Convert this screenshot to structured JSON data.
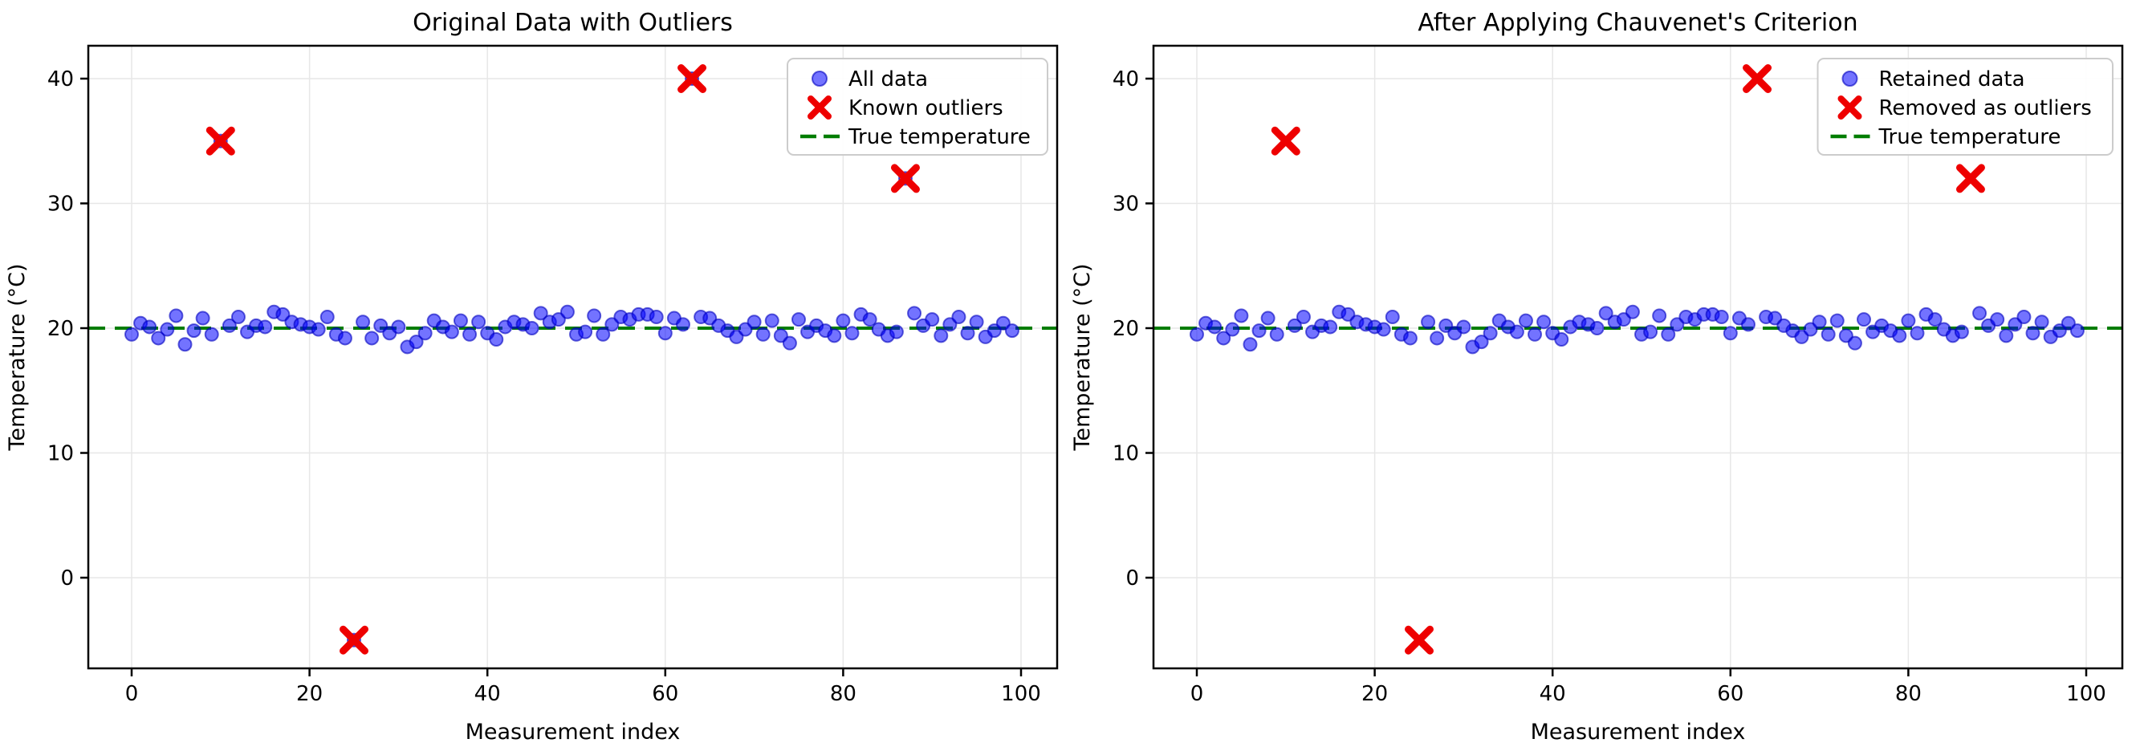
{
  "figure": {
    "background": "#ffffff",
    "colors": {
      "data_point_fill": "#6666ff",
      "data_point_edge": "#3b3bd6",
      "outlier_red": "#ee0000",
      "true_line_green": "#007d00",
      "grid": "#e7e7e7",
      "spine": "#000000",
      "legend_border": "#cccccc"
    }
  },
  "chart_data": [
    {
      "type": "scatter",
      "title": "Original Data with Outliers",
      "xlabel": "Measurement index",
      "ylabel": "Temperature (°C)",
      "xlim": [
        -4.9,
        104.1
      ],
      "ylim": [
        -7.3,
        42.8
      ],
      "xticks": [
        0,
        20,
        40,
        60,
        80,
        100
      ],
      "yticks": [
        0,
        10,
        20,
        30,
        40
      ],
      "grid": true,
      "legend_position": "upper right",
      "legend_labels": [
        "All data",
        "Known outliers",
        "True temperature"
      ],
      "series": [
        {
          "name": "All data",
          "kind": "scatter",
          "marker": "circle",
          "color": "#6666ff",
          "x": [
            0,
            1,
            2,
            3,
            4,
            5,
            6,
            7,
            8,
            9,
            10,
            11,
            12,
            13,
            14,
            15,
            16,
            17,
            18,
            19,
            20,
            21,
            22,
            23,
            24,
            25,
            26,
            27,
            28,
            29,
            30,
            31,
            32,
            33,
            34,
            35,
            36,
            37,
            38,
            39,
            40,
            41,
            42,
            43,
            44,
            45,
            46,
            47,
            48,
            49,
            50,
            51,
            52,
            53,
            54,
            55,
            56,
            57,
            58,
            59,
            60,
            61,
            62,
            63,
            64,
            65,
            66,
            67,
            68,
            69,
            70,
            71,
            72,
            73,
            74,
            75,
            76,
            77,
            78,
            79,
            80,
            81,
            82,
            83,
            84,
            85,
            86,
            87,
            88,
            89,
            90,
            91,
            92,
            93,
            94,
            95,
            96,
            97,
            98,
            99
          ],
          "y": [
            19.5,
            20.4,
            20.1,
            19.2,
            19.9,
            21.0,
            18.7,
            19.8,
            20.8,
            19.5,
            35.0,
            20.2,
            20.9,
            19.7,
            20.2,
            20.1,
            21.3,
            21.1,
            20.5,
            20.3,
            20.1,
            19.9,
            20.9,
            19.5,
            19.2,
            -5.0,
            20.5,
            19.2,
            20.2,
            19.6,
            20.1,
            18.5,
            18.9,
            19.6,
            20.6,
            20.1,
            19.7,
            20.6,
            19.5,
            20.5,
            19.6,
            19.1,
            20.1,
            20.5,
            20.3,
            20.0,
            21.2,
            20.5,
            20.7,
            21.3,
            19.5,
            19.7,
            21.0,
            19.5,
            20.3,
            20.9,
            20.7,
            21.1,
            21.1,
            20.9,
            19.6,
            20.8,
            20.3,
            40.0,
            20.9,
            20.8,
            20.2,
            19.8,
            19.3,
            19.9,
            20.5,
            19.5,
            20.6,
            19.4,
            18.8,
            20.7,
            19.7,
            20.2,
            19.8,
            19.4,
            20.6,
            19.6,
            21.1,
            20.7,
            19.9,
            19.4,
            19.7,
            32.0,
            21.2,
            20.2,
            20.7,
            19.4,
            20.3,
            20.9,
            19.6,
            20.5,
            19.3,
            19.8,
            20.4,
            19.8
          ]
        },
        {
          "name": "Known outliers",
          "kind": "scatter",
          "marker": "X",
          "color": "#ee0000",
          "x": [
            10,
            25,
            63,
            87
          ],
          "y": [
            35.0,
            -5.0,
            40.0,
            32.0
          ]
        },
        {
          "name": "True temperature",
          "kind": "hline",
          "dashed": true,
          "color": "#007d00",
          "y": 20
        }
      ]
    },
    {
      "type": "scatter",
      "title": "After Applying Chauvenet's Criterion",
      "xlabel": "Measurement index",
      "ylabel": "Temperature (°C)",
      "xlim": [
        -4.9,
        104.1
      ],
      "ylim": [
        -7.3,
        42.8
      ],
      "xticks": [
        0,
        20,
        40,
        60,
        80,
        100
      ],
      "yticks": [
        0,
        10,
        20,
        30,
        40
      ],
      "grid": true,
      "legend_position": "upper right",
      "legend_labels": [
        "Retained data",
        "Removed as outliers",
        "True temperature"
      ],
      "series": [
        {
          "name": "Retained data",
          "kind": "scatter",
          "marker": "circle",
          "color": "#6666ff",
          "x": [
            0,
            1,
            2,
            3,
            4,
            5,
            6,
            7,
            8,
            9,
            11,
            12,
            13,
            14,
            15,
            16,
            17,
            18,
            19,
            20,
            21,
            22,
            23,
            24,
            26,
            27,
            28,
            29,
            30,
            31,
            32,
            33,
            34,
            35,
            36,
            37,
            38,
            39,
            40,
            41,
            42,
            43,
            44,
            45,
            46,
            47,
            48,
            49,
            50,
            51,
            52,
            53,
            54,
            55,
            56,
            57,
            58,
            59,
            60,
            61,
            62,
            64,
            65,
            66,
            67,
            68,
            69,
            70,
            71,
            72,
            73,
            74,
            75,
            76,
            77,
            78,
            79,
            80,
            81,
            82,
            83,
            84,
            85,
            86,
            88,
            89,
            90,
            91,
            92,
            93,
            94,
            95,
            96,
            97,
            98,
            99
          ],
          "y": [
            19.5,
            20.4,
            20.1,
            19.2,
            19.9,
            21.0,
            18.7,
            19.8,
            20.8,
            19.5,
            20.2,
            20.9,
            19.7,
            20.2,
            20.1,
            21.3,
            21.1,
            20.5,
            20.3,
            20.1,
            19.9,
            20.9,
            19.5,
            19.2,
            20.5,
            19.2,
            20.2,
            19.6,
            20.1,
            18.5,
            18.9,
            19.6,
            20.6,
            20.1,
            19.7,
            20.6,
            19.5,
            20.5,
            19.6,
            19.1,
            20.1,
            20.5,
            20.3,
            20.0,
            21.2,
            20.5,
            20.7,
            21.3,
            19.5,
            19.7,
            21.0,
            19.5,
            20.3,
            20.9,
            20.7,
            21.1,
            21.1,
            20.9,
            19.6,
            20.8,
            20.3,
            20.9,
            20.8,
            20.2,
            19.8,
            19.3,
            19.9,
            20.5,
            19.5,
            20.6,
            19.4,
            18.8,
            20.7,
            19.7,
            20.2,
            19.8,
            19.4,
            20.6,
            19.6,
            21.1,
            20.7,
            19.9,
            19.4,
            19.7,
            21.2,
            20.2,
            20.7,
            19.4,
            20.3,
            20.9,
            19.6,
            20.5,
            19.3,
            19.8,
            20.4,
            19.8
          ]
        },
        {
          "name": "Removed as outliers",
          "kind": "scatter",
          "marker": "X",
          "color": "#ee0000",
          "x": [
            10,
            25,
            63,
            87
          ],
          "y": [
            35.0,
            -5.0,
            40.0,
            32.0
          ]
        },
        {
          "name": "True temperature",
          "kind": "hline",
          "dashed": true,
          "color": "#007d00",
          "y": 20
        }
      ]
    }
  ]
}
